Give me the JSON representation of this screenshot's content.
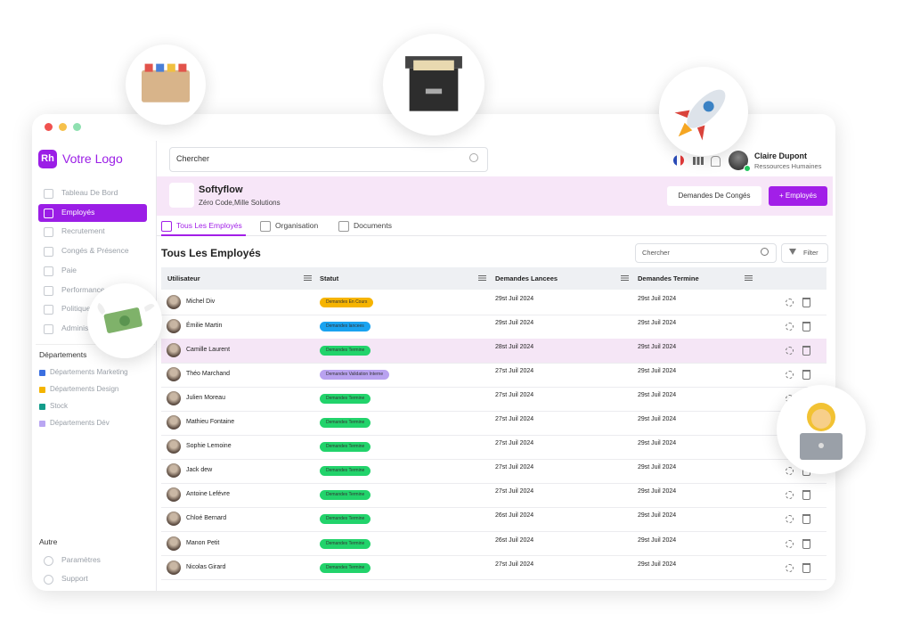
{
  "sidebar": {
    "logo_mark": "Rh",
    "logo_text": "Votre Logo",
    "nav": [
      "Tableau De Bord",
      "Employés",
      "Recrutement",
      "Congés & Présence",
      "Paie",
      "Performance",
      "Politiques",
      "Administration"
    ],
    "active": 1,
    "departments_title": "Départements",
    "departments": [
      {
        "label": "Départements Marketing",
        "color": "#3b6fe0"
      },
      {
        "label": "Départements Design",
        "color": "#f4b400"
      },
      {
        "label": "Stock",
        "color": "#129c8a"
      },
      {
        "label": "Départements Dév",
        "color": "#b9a6f2"
      }
    ],
    "other_title": "Autre",
    "other": [
      "Paramètres",
      "Support"
    ]
  },
  "header": {
    "search": "Chercher",
    "user_name": "Claire Dupont",
    "user_role": "Ressources Humaines"
  },
  "company": {
    "name": "Softyflow",
    "tagline": "Zéro Code,Mille Solutions",
    "button_leave": "Demandes De Congés",
    "button_add": "+ Employés"
  },
  "tabs": [
    "Tous Les Employés",
    "Organisation",
    "Documents"
  ],
  "section": {
    "title": "Tous Les Employés",
    "search": "Chercher",
    "filter": "Filter"
  },
  "table": {
    "columns": [
      "Utilisateur",
      "Statut",
      "Demandes Lancees",
      "Demandes Termine"
    ],
    "highlight": 2,
    "rows": [
      {
        "name": "Michel Div",
        "status": "Demandes En Cours",
        "color": "#f6b400",
        "start": "29st Juil 2024",
        "end": "29st Juil 2024"
      },
      {
        "name": "Émilie Martin",
        "status": "Demandes lancees",
        "color": "#1aa3f0",
        "start": "29st Juil 2024",
        "end": "29st Juil 2024"
      },
      {
        "name": "Camille Laurent",
        "status": "Demandes Termine",
        "color": "#22d36b",
        "start": "28st Juil 2024",
        "end": "29st Juil 2024"
      },
      {
        "name": "Théo Marchand",
        "status": "Demandes Validation Interne",
        "color": "#b9a2f0",
        "start": "27st Juil 2024",
        "end": "29st Juil 2024"
      },
      {
        "name": "Julien Moreau",
        "status": "Demandes Termine",
        "color": "#22d36b",
        "start": "27st Juil 2024",
        "end": "29st Juil 2024"
      },
      {
        "name": "Mathieu Fontaine",
        "status": "Demandes Termine",
        "color": "#22d36b",
        "start": "27st Juil 2024",
        "end": "29st Juil 2024"
      },
      {
        "name": "Sophie Lemoine",
        "status": "Demandes Termine",
        "color": "#22d36b",
        "start": "27st Juil 2024",
        "end": "29st Juil 2024"
      },
      {
        "name": "Jack dew",
        "status": "Demandes Termine",
        "color": "#22d36b",
        "start": "27st Juil 2024",
        "end": "29st Juil 2024"
      },
      {
        "name": "Antoine Lefévre",
        "status": "Demandes Termine",
        "color": "#22d36b",
        "start": "27st Juil 2024",
        "end": "29st Juil 2024"
      },
      {
        "name": "Chloé Bernard",
        "status": "Demandes Termine",
        "color": "#22d36b",
        "start": "26st Juil 2024",
        "end": "29st Juil 2024"
      },
      {
        "name": "Manon Petit",
        "status": "Demandes Termine",
        "color": "#22d36b",
        "start": "26st Juil 2024",
        "end": "29st Juil 2024"
      },
      {
        "name": "Nicolas Girard",
        "status": "Demandes Termine",
        "color": "#22d36b",
        "start": "27st Juil 2024",
        "end": "29st Juil 2024"
      }
    ]
  }
}
